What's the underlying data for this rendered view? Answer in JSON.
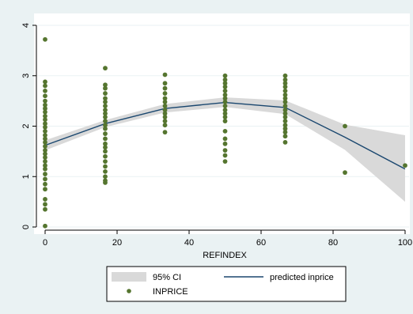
{
  "chart_data": {
    "type": "scatter",
    "title": "",
    "xlabel": "REFINDEX",
    "ylabel": "",
    "xlim": [
      0,
      100
    ],
    "ylim": [
      0,
      4
    ],
    "x_ticks": [
      0,
      20,
      40,
      60,
      80,
      100
    ],
    "y_ticks": [
      0,
      1,
      2,
      3,
      4
    ],
    "grid": "horizontal",
    "legend_position": "bottom",
    "colors": {
      "background": "#eaf2f3",
      "plot_bg": "#ffffff",
      "ci": "#d9d9d9",
      "line": "#1a476f",
      "points": "#55752f",
      "grid": "#eaf2f3",
      "legend_bg": "#ffffff"
    },
    "legend": [
      {
        "label": "95% CI",
        "symbol": "band"
      },
      {
        "label": "predicted inprice",
        "symbol": "line"
      },
      {
        "label": "INPRICE",
        "symbol": "dot"
      }
    ],
    "series": [
      {
        "name": "INPRICE",
        "type": "scatter",
        "points": [
          [
            0,
            3.72
          ],
          [
            0,
            2.88
          ],
          [
            0,
            2.8
          ],
          [
            0,
            2.7
          ],
          [
            0,
            2.6
          ],
          [
            0,
            2.5
          ],
          [
            0,
            2.42
          ],
          [
            0,
            2.35
          ],
          [
            0,
            2.28
          ],
          [
            0,
            2.2
          ],
          [
            0,
            2.13
          ],
          [
            0,
            2.05
          ],
          [
            0,
            1.98
          ],
          [
            0,
            1.9
          ],
          [
            0,
            1.82
          ],
          [
            0,
            1.75
          ],
          [
            0,
            1.68
          ],
          [
            0,
            1.6
          ],
          [
            0,
            1.52
          ],
          [
            0,
            1.45
          ],
          [
            0,
            1.38
          ],
          [
            0,
            1.3
          ],
          [
            0,
            1.22
          ],
          [
            0,
            1.15
          ],
          [
            0,
            1.05
          ],
          [
            0,
            0.95
          ],
          [
            0,
            0.85
          ],
          [
            0,
            0.75
          ],
          [
            0,
            0.55
          ],
          [
            0,
            0.45
          ],
          [
            0,
            0.35
          ],
          [
            0,
            0.02
          ],
          [
            16.7,
            3.15
          ],
          [
            16.7,
            2.82
          ],
          [
            16.7,
            2.75
          ],
          [
            16.7,
            2.65
          ],
          [
            16.7,
            2.55
          ],
          [
            16.7,
            2.48
          ],
          [
            16.7,
            2.4
          ],
          [
            16.7,
            2.32
          ],
          [
            16.7,
            2.25
          ],
          [
            16.7,
            2.18
          ],
          [
            16.7,
            2.1
          ],
          [
            16.7,
            2.02
          ],
          [
            16.7,
            1.95
          ],
          [
            16.7,
            1.85
          ],
          [
            16.7,
            1.75
          ],
          [
            16.7,
            1.65
          ],
          [
            16.7,
            1.58
          ],
          [
            16.7,
            1.5
          ],
          [
            16.7,
            1.4
          ],
          [
            16.7,
            1.3
          ],
          [
            16.7,
            1.2
          ],
          [
            16.7,
            1.1
          ],
          [
            16.7,
            1.0
          ],
          [
            16.7,
            0.92
          ],
          [
            16.7,
            0.88
          ],
          [
            33.3,
            3.02
          ],
          [
            33.3,
            2.85
          ],
          [
            33.3,
            2.75
          ],
          [
            33.3,
            2.65
          ],
          [
            33.3,
            2.55
          ],
          [
            33.3,
            2.48
          ],
          [
            33.3,
            2.4
          ],
          [
            33.3,
            2.32
          ],
          [
            33.3,
            2.25
          ],
          [
            33.3,
            2.18
          ],
          [
            33.3,
            2.1
          ],
          [
            33.3,
            2.02
          ],
          [
            33.3,
            1.88
          ],
          [
            50,
            3.0
          ],
          [
            50,
            2.92
          ],
          [
            50,
            2.85
          ],
          [
            50,
            2.78
          ],
          [
            50,
            2.7
          ],
          [
            50,
            2.62
          ],
          [
            50,
            2.55
          ],
          [
            50,
            2.48
          ],
          [
            50,
            2.4
          ],
          [
            50,
            2.32
          ],
          [
            50,
            2.25
          ],
          [
            50,
            2.18
          ],
          [
            50,
            2.1
          ],
          [
            50,
            1.9
          ],
          [
            50,
            1.75
          ],
          [
            50,
            1.65
          ],
          [
            50,
            1.52
          ],
          [
            50,
            1.42
          ],
          [
            50,
            1.3
          ],
          [
            66.7,
            3.0
          ],
          [
            66.7,
            2.92
          ],
          [
            66.7,
            2.85
          ],
          [
            66.7,
            2.78
          ],
          [
            66.7,
            2.7
          ],
          [
            66.7,
            2.62
          ],
          [
            66.7,
            2.55
          ],
          [
            66.7,
            2.48
          ],
          [
            66.7,
            2.4
          ],
          [
            66.7,
            2.32
          ],
          [
            66.7,
            2.25
          ],
          [
            66.7,
            2.18
          ],
          [
            66.7,
            2.1
          ],
          [
            66.7,
            2.02
          ],
          [
            66.7,
            1.95
          ],
          [
            66.7,
            1.88
          ],
          [
            66.7,
            1.8
          ],
          [
            66.7,
            1.68
          ],
          [
            83.3,
            2.0
          ],
          [
            83.3,
            1.08
          ],
          [
            100,
            1.22
          ]
        ]
      },
      {
        "name": "predicted inprice",
        "type": "line",
        "x": [
          0,
          16.7,
          33.3,
          50,
          66.7,
          83.3,
          100
        ],
        "y": [
          1.62,
          2.05,
          2.35,
          2.47,
          2.37,
          1.78,
          1.15
        ]
      },
      {
        "name": "95% CI",
        "type": "band",
        "x": [
          0,
          16.7,
          33.3,
          50,
          66.7,
          83.3,
          100
        ],
        "lower": [
          1.52,
          1.98,
          2.27,
          2.38,
          2.24,
          1.53,
          0.5
        ],
        "upper": [
          1.72,
          2.12,
          2.44,
          2.57,
          2.51,
          2.03,
          1.82
        ]
      }
    ]
  }
}
